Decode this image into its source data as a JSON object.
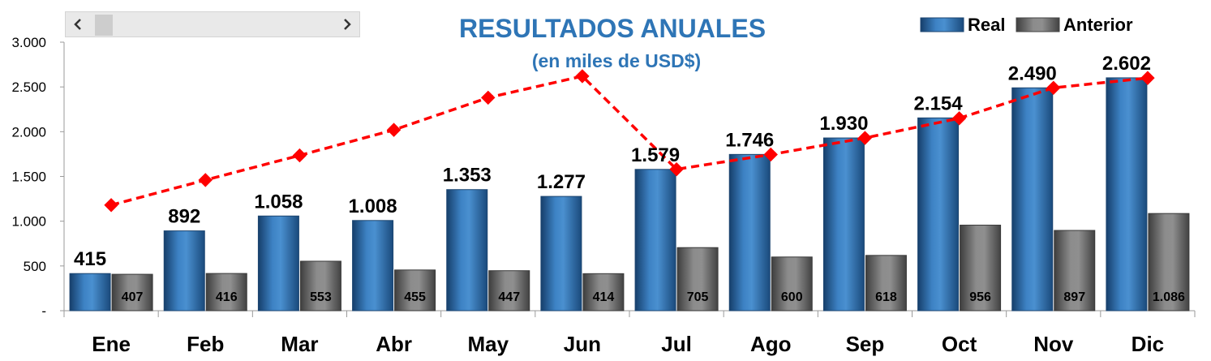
{
  "chart_data": {
    "type": "bar",
    "title": "RESULTADOS ANUALES",
    "subtitle": "(en miles de USD$)",
    "categories": [
      "Ene",
      "Feb",
      "Mar",
      "Abr",
      "May",
      "Jun",
      "Jul",
      "Ago",
      "Sep",
      "Oct",
      "Nov",
      "Dic"
    ],
    "series": [
      {
        "name": "Real",
        "values": [
          415,
          892,
          1058,
          1008,
          1353,
          1277,
          1579,
          1746,
          1930,
          2154,
          2490,
          2602
        ],
        "labels": [
          "415",
          "892",
          "1.058",
          "1.008",
          "1.353",
          "1.277",
          "1.579",
          "1.746",
          "1.930",
          "2.154",
          "2.490",
          "2.602"
        ]
      },
      {
        "name": "Anterior",
        "values": [
          407,
          416,
          553,
          455,
          447,
          414,
          705,
          600,
          618,
          956,
          897,
          1086
        ],
        "labels": [
          "407",
          "416",
          "553",
          "455",
          "447",
          "414",
          "705",
          "600",
          "618",
          "956",
          "897",
          "1.086"
        ]
      }
    ],
    "line_series": {
      "type": "line",
      "style": "dashed",
      "marker": "diamond",
      "values": [
        1180,
        1460,
        1735,
        2020,
        2380,
        2620,
        1580,
        1745,
        1930,
        2150,
        2490,
        2600
      ]
    },
    "ylim": [
      0,
      3000
    ],
    "yticks": [
      0,
      500,
      1000,
      1500,
      2000,
      2500,
      3000
    ],
    "ytick_labels": [
      "-",
      "500",
      "1.000",
      "1.500",
      "2.000",
      "2.500",
      "3.000"
    ],
    "grid": false,
    "legend_position": "top-right",
    "colors": {
      "real": "#2e6ca8",
      "anterior": "#7a7a7a",
      "line": "#ff0000",
      "title": "#2e75b6"
    }
  }
}
